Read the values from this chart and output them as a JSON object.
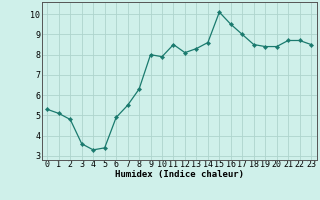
{
  "x": [
    0,
    1,
    2,
    3,
    4,
    5,
    6,
    7,
    8,
    9,
    10,
    11,
    12,
    13,
    14,
    15,
    16,
    17,
    18,
    19,
    20,
    21,
    22,
    23
  ],
  "y": [
    5.3,
    5.1,
    4.8,
    3.6,
    3.3,
    3.4,
    4.9,
    5.5,
    6.3,
    8.0,
    7.9,
    8.5,
    8.1,
    8.3,
    8.6,
    10.1,
    9.5,
    9.0,
    8.5,
    8.4,
    8.4,
    8.7,
    8.7,
    8.5
  ],
  "xlabel": "Humidex (Indice chaleur)",
  "xlim": [
    -0.5,
    23.5
  ],
  "ylim": [
    2.8,
    10.6
  ],
  "yticks": [
    3,
    4,
    5,
    6,
    7,
    8,
    9,
    10
  ],
  "xticks": [
    0,
    1,
    2,
    3,
    4,
    5,
    6,
    7,
    8,
    9,
    10,
    11,
    12,
    13,
    14,
    15,
    16,
    17,
    18,
    19,
    20,
    21,
    22,
    23
  ],
  "line_color": "#1a7a6e",
  "marker": "D",
  "marker_size": 2.2,
  "bg_color": "#cff0ea",
  "grid_color": "#aed4cd",
  "axis_fontsize": 6.5,
  "tick_fontsize": 6.0
}
